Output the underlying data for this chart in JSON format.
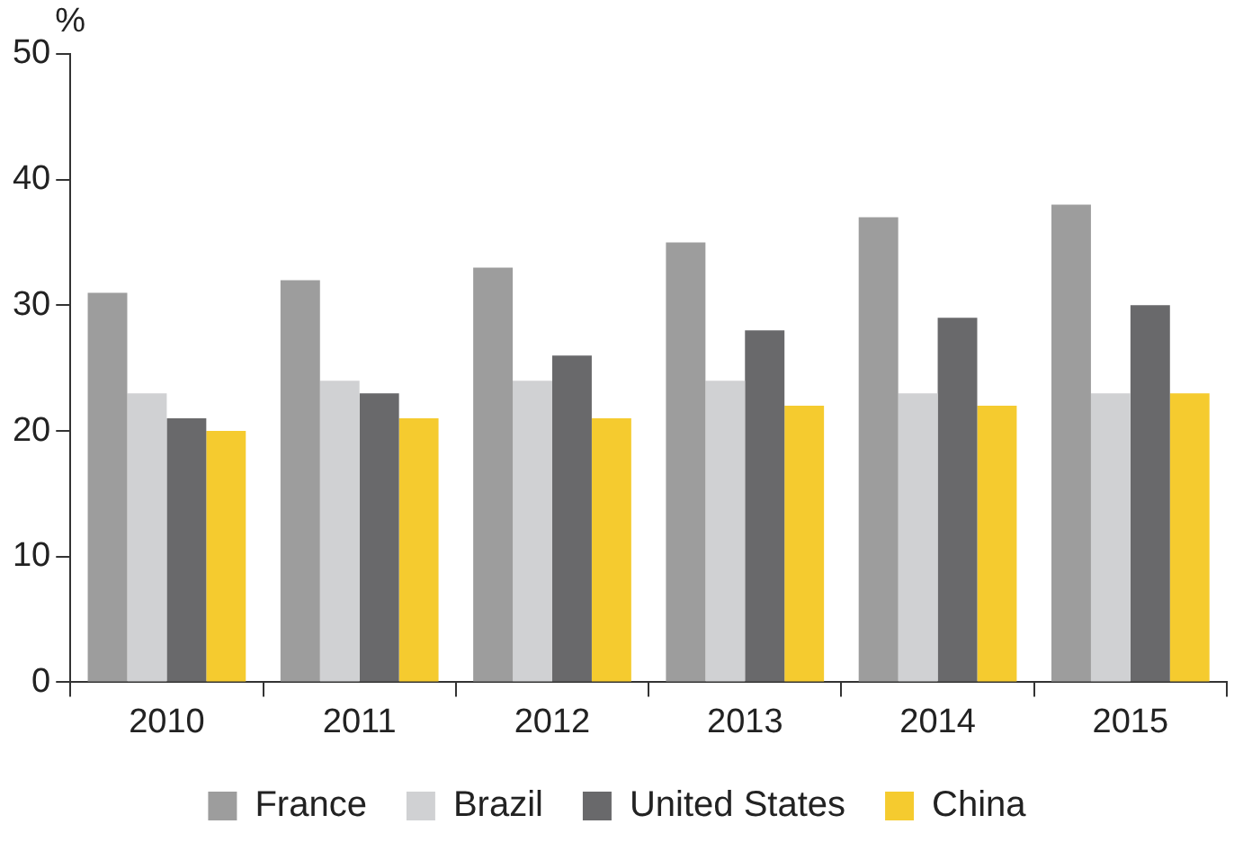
{
  "chart_data": {
    "type": "bar",
    "ylabel": "%",
    "categories": [
      "2010",
      "2011",
      "2012",
      "2013",
      "2014",
      "2015"
    ],
    "series": [
      {
        "name": "France",
        "color": "#9d9d9d",
        "values": [
          31,
          32,
          33,
          35,
          37,
          38
        ]
      },
      {
        "name": "Brazil",
        "color": "#d0d1d3",
        "values": [
          23,
          24,
          24,
          24,
          23,
          23
        ]
      },
      {
        "name": "United States",
        "color": "#69696b",
        "values": [
          21,
          23,
          26,
          28,
          29,
          30
        ]
      },
      {
        "name": "China",
        "color": "#f5cb2f",
        "values": [
          20,
          21,
          21,
          22,
          22,
          23
        ]
      }
    ],
    "ylim": [
      0,
      50
    ],
    "yticks": [
      0,
      10,
      20,
      30,
      40,
      50
    ],
    "grid": false,
    "legend": "bottom"
  }
}
